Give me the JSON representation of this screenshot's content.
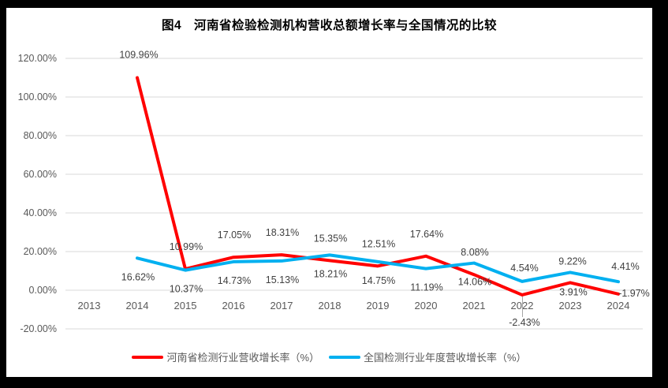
{
  "title": "图4　河南省检验检测机构营收总额增长率与全国情况的比较",
  "chart_data": {
    "type": "line",
    "categories": [
      "2013",
      "2014",
      "2015",
      "2016",
      "2017",
      "2018",
      "2019",
      "2020",
      "2021",
      "2022",
      "2023",
      "2024"
    ],
    "series": [
      {
        "name": "河南省检测行业营收增长率（%）",
        "color": "#FF0000",
        "values": [
          null,
          109.96,
          10.99,
          17.05,
          18.31,
          15.35,
          12.51,
          17.64,
          8.08,
          -2.43,
          3.91,
          -1.97
        ]
      },
      {
        "name": "全国检测行业年度营收增长率（%）",
        "color": "#00B0F0",
        "values": [
          null,
          16.62,
          10.37,
          14.73,
          15.13,
          18.21,
          14.75,
          11.19,
          14.06,
          4.54,
          9.22,
          4.41
        ]
      }
    ],
    "ytick_labels": [
      "120.00%",
      "100.00%",
      "80.00%",
      "60.00%",
      "40.00%",
      "20.00%",
      "0.00%",
      "-20.00%"
    ],
    "ylim": [
      -20,
      120
    ],
    "xlabel": "",
    "ylabel": "",
    "grid": true,
    "legend_position": "bottom"
  },
  "colors": {
    "grid": "#D9D9D9",
    "axis_text": "#595959",
    "data_label_text": "#404040",
    "leader_line": "#A6A6A6",
    "plot_background": "#FFFFFF",
    "outer_background": "#000000"
  }
}
